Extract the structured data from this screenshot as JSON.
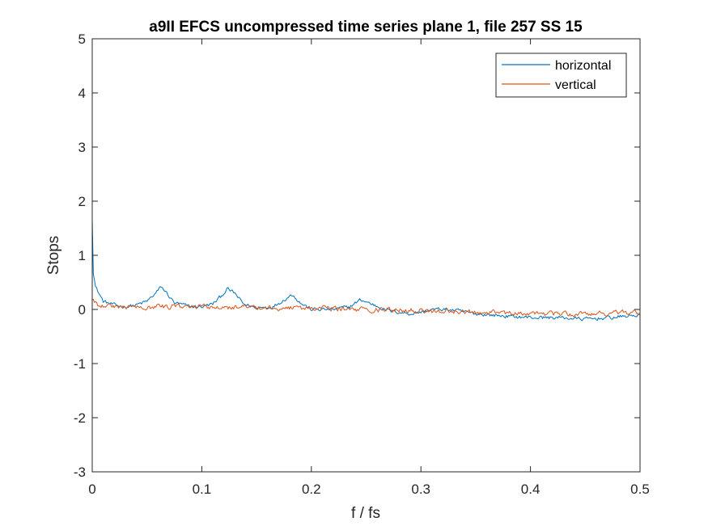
{
  "chart_data": {
    "type": "line",
    "title": "a9II EFCS uncompressed time series plane 1, file 257 SS 15",
    "xlabel": "f / fs",
    "ylabel": "Stops",
    "xlim": [
      0,
      0.5
    ],
    "ylim": [
      -3,
      5
    ],
    "xticks": [
      0,
      0.1,
      0.2,
      0.3,
      0.4,
      0.5
    ],
    "xtick_labels": [
      "0",
      "0.1",
      "0.2",
      "0.3",
      "0.4",
      "0.5"
    ],
    "yticks": [
      -3,
      -2,
      -1,
      0,
      1,
      2,
      3,
      4,
      5
    ],
    "ytick_labels": [
      "-3",
      "-2",
      "-1",
      "0",
      "1",
      "2",
      "3",
      "4",
      "5"
    ],
    "grid": false,
    "legend_position": "top-right",
    "series": [
      {
        "name": "horizontal",
        "color": "#0072BD",
        "anchors": [
          [
            0,
            1.65
          ],
          [
            0.001,
            0.7
          ],
          [
            0.003,
            0.42
          ],
          [
            0.006,
            0.3
          ],
          [
            0.01,
            0.15
          ],
          [
            0.02,
            0.08
          ],
          [
            0.03,
            0.05
          ],
          [
            0.04,
            0.08
          ],
          [
            0.05,
            0.15
          ],
          [
            0.058,
            0.3
          ],
          [
            0.063,
            0.42
          ],
          [
            0.068,
            0.3
          ],
          [
            0.075,
            0.12
          ],
          [
            0.09,
            0.05
          ],
          [
            0.1,
            0.05
          ],
          [
            0.11,
            0.1
          ],
          [
            0.118,
            0.25
          ],
          [
            0.123,
            0.38
          ],
          [
            0.13,
            0.3
          ],
          [
            0.138,
            0.1
          ],
          [
            0.15,
            0.03
          ],
          [
            0.165,
            0.05
          ],
          [
            0.175,
            0.18
          ],
          [
            0.183,
            0.28
          ],
          [
            0.19,
            0.12
          ],
          [
            0.2,
            0.0
          ],
          [
            0.22,
            0.0
          ],
          [
            0.235,
            0.05
          ],
          [
            0.245,
            0.18
          ],
          [
            0.255,
            0.1
          ],
          [
            0.27,
            -0.02
          ],
          [
            0.29,
            -0.08
          ],
          [
            0.3,
            -0.05
          ],
          [
            0.31,
            0.0
          ],
          [
            0.325,
            0.0
          ],
          [
            0.35,
            -0.08
          ],
          [
            0.375,
            -0.12
          ],
          [
            0.4,
            -0.15
          ],
          [
            0.425,
            -0.15
          ],
          [
            0.45,
            -0.18
          ],
          [
            0.475,
            -0.15
          ],
          [
            0.49,
            -0.12
          ],
          [
            0.5,
            -0.1
          ]
        ],
        "noise": 0.055
      },
      {
        "name": "vertical",
        "color": "#D95319",
        "anchors": [
          [
            0,
            0.18
          ],
          [
            0.005,
            0.1
          ],
          [
            0.02,
            0.05
          ],
          [
            0.05,
            0.05
          ],
          [
            0.1,
            0.05
          ],
          [
            0.15,
            0.03
          ],
          [
            0.2,
            0.02
          ],
          [
            0.25,
            0.0
          ],
          [
            0.3,
            -0.02
          ],
          [
            0.35,
            -0.05
          ],
          [
            0.4,
            -0.08
          ],
          [
            0.45,
            -0.08
          ],
          [
            0.5,
            -0.05
          ]
        ],
        "noise": 0.075
      }
    ]
  }
}
